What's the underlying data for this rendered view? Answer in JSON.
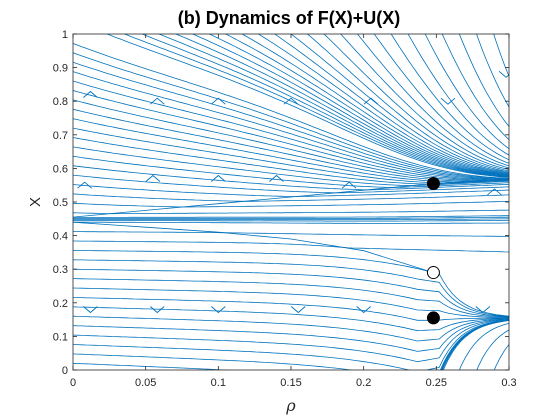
{
  "chart_data": {
    "type": "streamplot",
    "title": "(b) Dynamics of F(X)+U(X)",
    "xlabel": "ρ",
    "ylabel": "X",
    "xlim": [
      0,
      0.3
    ],
    "ylim": [
      0,
      1
    ],
    "xticks": [
      "0",
      "0.05",
      "0.1",
      "0.15",
      "0.2",
      "0.25",
      "0.3"
    ],
    "yticks": [
      "0",
      "0.1",
      "0.2",
      "0.3",
      "0.4",
      "0.5",
      "0.6",
      "0.7",
      "0.8",
      "0.9",
      "1"
    ],
    "grid": false,
    "stream_color": "#0072BD",
    "equilibria": [
      {
        "x": 0.248,
        "y": 0.555,
        "type": "stable"
      },
      {
        "x": 0.248,
        "y": 0.29,
        "type": "unstable"
      },
      {
        "x": 0.248,
        "y": 0.155,
        "type": "stable"
      }
    ],
    "separatrix_upper": [
      [
        0,
        0.455
      ],
      [
        0.05,
        0.475
      ],
      [
        0.1,
        0.495
      ],
      [
        0.15,
        0.515
      ],
      [
        0.2,
        0.535
      ],
      [
        0.248,
        0.555
      ],
      [
        0.3,
        0.57
      ]
    ],
    "separatrix_lower": [
      [
        0,
        0.44
      ],
      [
        0.05,
        0.425
      ],
      [
        0.1,
        0.41
      ],
      [
        0.15,
        0.39
      ],
      [
        0.2,
        0.355
      ],
      [
        0.248,
        0.29
      ]
    ],
    "arrows": [
      {
        "x": 0.012,
        "y": 0.18,
        "dir": "down"
      },
      {
        "x": 0.058,
        "y": 0.18,
        "dir": "down"
      },
      {
        "x": 0.1,
        "y": 0.18,
        "dir": "down"
      },
      {
        "x": 0.155,
        "y": 0.18,
        "dir": "down"
      },
      {
        "x": 0.2,
        "y": 0.18,
        "dir": "down"
      },
      {
        "x": 0.282,
        "y": 0.18,
        "dir": "down"
      },
      {
        "x": 0.008,
        "y": 0.55,
        "dir": "up"
      },
      {
        "x": 0.055,
        "y": 0.57,
        "dir": "up"
      },
      {
        "x": 0.1,
        "y": 0.57,
        "dir": "up"
      },
      {
        "x": 0.14,
        "y": 0.57,
        "dir": "up"
      },
      {
        "x": 0.19,
        "y": 0.55,
        "dir": "up"
      },
      {
        "x": 0.29,
        "y": 0.53,
        "dir": "up"
      },
      {
        "x": 0.058,
        "y": 0.8,
        "dir": "up"
      },
      {
        "x": 0.1,
        "y": 0.8,
        "dir": "up"
      },
      {
        "x": 0.15,
        "y": 0.8,
        "dir": "up"
      },
      {
        "x": 0.205,
        "y": 0.8,
        "dir": "up"
      },
      {
        "x": 0.258,
        "y": 0.8,
        "dir": "down"
      },
      {
        "x": 0.298,
        "y": 0.88,
        "dir": "down"
      },
      {
        "x": 0.012,
        "y": 0.82,
        "dir": "up"
      }
    ]
  }
}
